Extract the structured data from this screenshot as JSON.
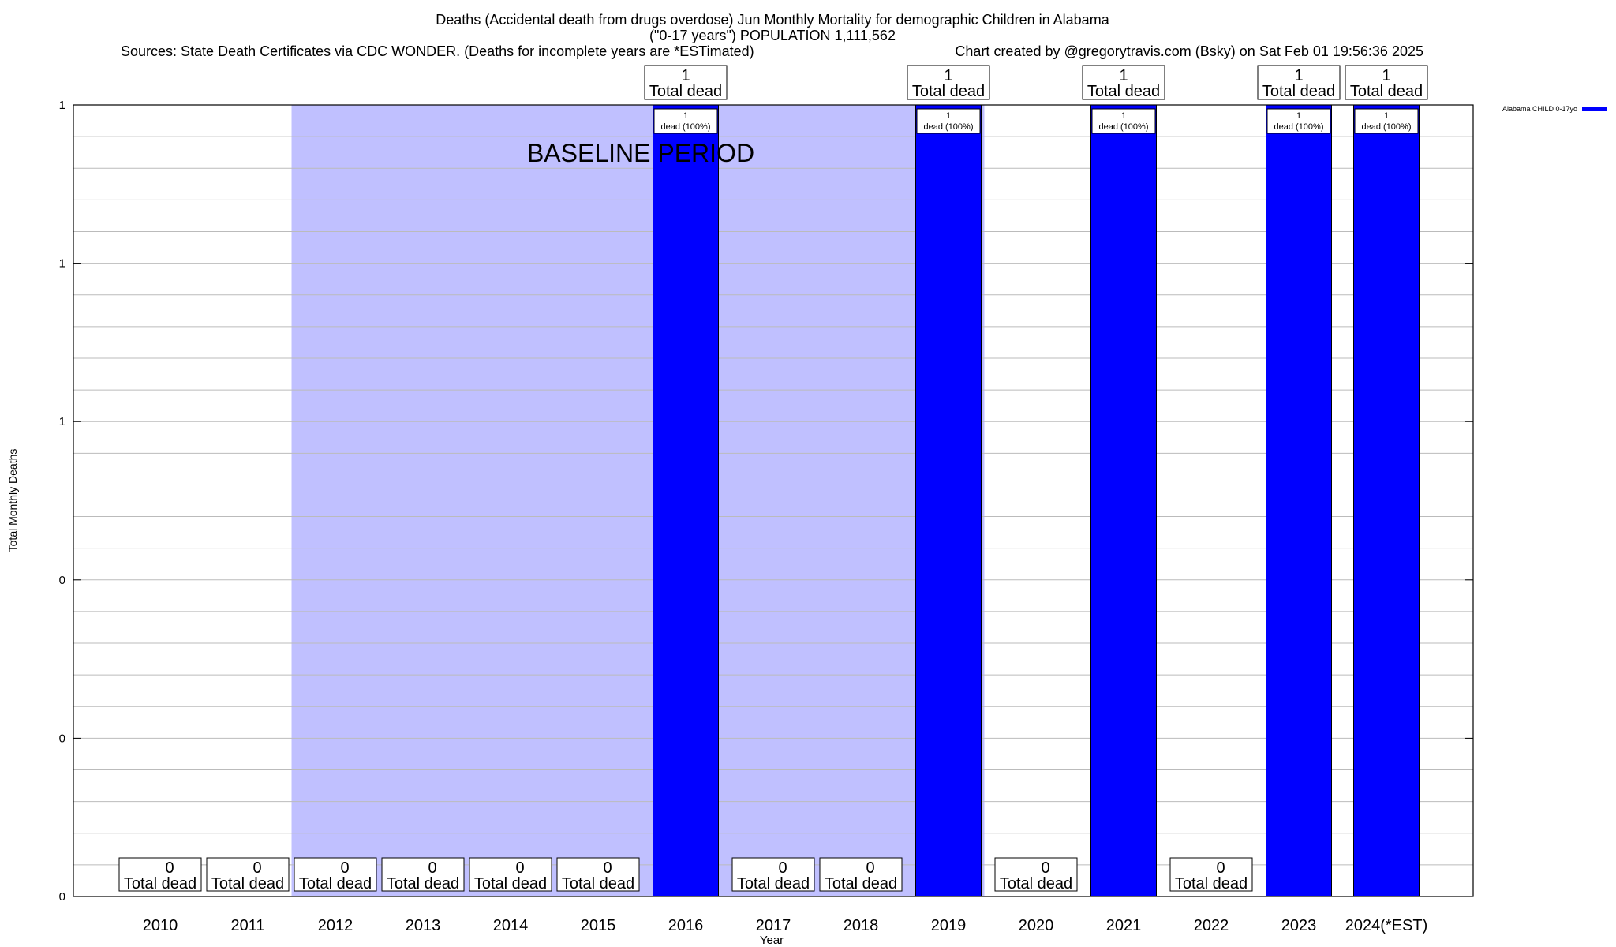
{
  "chart_data": {
    "type": "bar",
    "title_lines": [
      "Deaths (Accidental death from drugs overdose) Jun Monthly Mortality for demographic Children in Alabama",
      "(\"0-17 years\") POPULATION 1,111,562"
    ],
    "source": "Sources: State Death Certificates via CDC WONDER. (Deaths for incomplete years are *ESTimated)",
    "credit": "Chart created by @gregorytravis.com (Bsky) on Sat Feb 01 19:56:36 2025",
    "xlabel": "Year",
    "ylabel": "Total Monthly Deaths",
    "ylim": [
      0,
      1
    ],
    "ytick_labels": [
      "0",
      "0",
      "0",
      "1",
      "1",
      "1"
    ],
    "grid": true,
    "categories": [
      "2010",
      "2011",
      "2012",
      "2013",
      "2014",
      "2015",
      "2016",
      "2017",
      "2018",
      "2019",
      "2020",
      "2021",
      "2022",
      "2023",
      "2024(*EST)"
    ],
    "series": [
      {
        "name": "Alabama CHILD 0-17yo",
        "color": "#0000ff",
        "values": [
          0,
          0,
          0,
          0,
          0,
          0,
          1,
          0,
          0,
          1,
          0,
          1,
          0,
          1,
          1
        ]
      }
    ],
    "total_label_numbers": [
      "0",
      "0",
      "0",
      "0",
      "0",
      "0",
      "1",
      "0",
      "0",
      "1",
      "0",
      "1",
      "0",
      "1",
      "1"
    ],
    "total_label_text": "Total dead",
    "bar_label_number": "1",
    "bar_label_text": "dead (100%)",
    "baseline": {
      "label": "BASELINE PERIOD",
      "from_year": 2012,
      "to_year": 2019,
      "color": "#c0c0ff"
    },
    "legend": {
      "position": "top-right",
      "label": "Alabama CHILD 0-17yo"
    }
  }
}
